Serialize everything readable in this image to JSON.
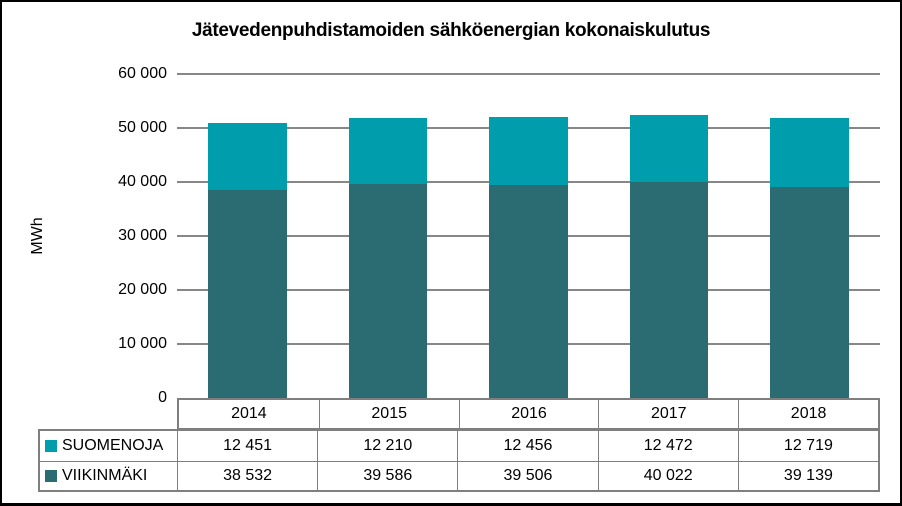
{
  "window": {
    "background": "#ffffff",
    "frame_border_color": "#000000",
    "gridline_color": "#878787",
    "table_border_color": "#7F7F7F"
  },
  "chart_data": {
    "type": "bar",
    "stacked": true,
    "title": "Jätevedenpuhdistamoiden sähköenergian kokonaiskulutus",
    "xlabel": "",
    "ylabel": "MWh",
    "categories": [
      "2014",
      "2015",
      "2016",
      "2017",
      "2018"
    ],
    "series": [
      {
        "name": "SUOMENOJA",
        "color": "#009EAC",
        "values": [
          12451,
          12210,
          12456,
          12472,
          12719
        ]
      },
      {
        "name": "VIIKINMÄKI",
        "color": "#2A6C72",
        "values": [
          38532,
          39586,
          39506,
          40022,
          39139
        ]
      }
    ],
    "totals": [
      50983,
      51796,
      51962,
      52494,
      51858
    ],
    "ylim": [
      0,
      60000
    ],
    "ytick_interval": 10000,
    "ytick_labels": [
      "0",
      "10 000",
      "20 000",
      "30 000",
      "40 000",
      "50 000",
      "60 000"
    ],
    "grid": true,
    "legend_position": "table-left-below"
  },
  "table": {
    "year_headers": [
      "2014",
      "2015",
      "2016",
      "2017",
      "2018"
    ],
    "rows": [
      {
        "label": "SUOMENOJA",
        "swatch_color": "#009EAC",
        "values": [
          "12 451",
          "12 210",
          "12 456",
          "12 472",
          "12 719"
        ]
      },
      {
        "label": "VIIKINMÄKI",
        "swatch_color": "#2A6C72",
        "values": [
          "38 532",
          "39 586",
          "39 506",
          "40 022",
          "39 139"
        ]
      }
    ]
  }
}
